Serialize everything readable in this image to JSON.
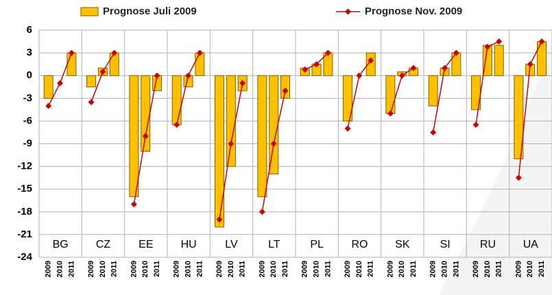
{
  "chart_data": {
    "type": "bar+line",
    "groups": [
      "BG",
      "CZ",
      "EE",
      "HU",
      "LV",
      "LT",
      "PL",
      "RO",
      "SK",
      "SI",
      "RU",
      "UA"
    ],
    "categories": [
      "2009",
      "2010",
      "2011",
      "2009",
      "2010",
      "2011",
      "2009",
      "2010",
      "2011",
      "2009",
      "2010",
      "2011",
      "2009",
      "2010",
      "2011",
      "2009",
      "2010",
      "2011",
      "2009",
      "2010",
      "2011",
      "2009",
      "2010",
      "2011",
      "2009",
      "2010",
      "2011",
      "2009",
      "2010",
      "2011",
      "2009",
      "2010",
      "2011",
      "2009",
      "2010",
      "2011"
    ],
    "series": [
      {
        "name": "Prognose Juli 2009",
        "type": "bar",
        "color": "#ffc000",
        "values": [
          -3,
          0,
          3,
          -1.5,
          1,
          3,
          -16,
          -10,
          -2,
          -6.5,
          -1.5,
          3,
          -20,
          -12,
          -2,
          -16,
          -13,
          -3,
          1,
          1.5,
          3,
          -6,
          0,
          3,
          -5,
          0.5,
          1,
          -4,
          1,
          3,
          -4.5,
          4,
          4,
          -11,
          1.5,
          4.5
        ]
      },
      {
        "name": "Prognose Nov. 2009",
        "type": "line",
        "color": "#cc0000",
        "values": [
          -4,
          -1,
          3,
          -3.5,
          0.5,
          3,
          -17,
          -8,
          0,
          -6.5,
          0,
          3,
          -19,
          -9,
          -1,
          -18,
          -9,
          -2,
          0.8,
          1.5,
          3,
          -7,
          0,
          2,
          -5,
          0,
          1,
          -7.5,
          1,
          3,
          -6.5,
          3.8,
          4.5,
          -13.5,
          1.5,
          4.5
        ]
      }
    ],
    "ylim": [
      -24,
      6
    ],
    "yticks": [
      -24,
      -21,
      -18,
      -15,
      -12,
      -9,
      -6,
      -3,
      0,
      3,
      6
    ],
    "grid": true
  }
}
